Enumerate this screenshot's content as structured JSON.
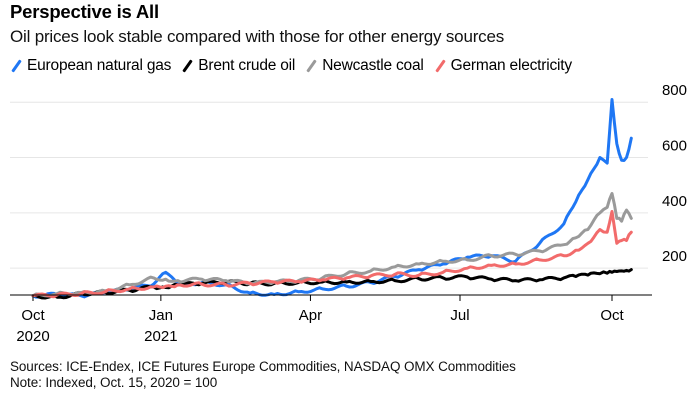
{
  "title": "Perspective is All",
  "subtitle": "Oil prices look stable compared with those for other energy sources",
  "legend": [
    {
      "name": "European natural gas",
      "color": "#1f77f4"
    },
    {
      "name": "Brent crude oil",
      "color": "#000000"
    },
    {
      "name": "Newcastle coal",
      "color": "#9a9a9a"
    },
    {
      "name": "German electricity",
      "color": "#f26b6b"
    }
  ],
  "footer": {
    "sources": "Sources: ICE-Endex, ICE Futures Europe Commodities, NASDAQ OMX Commodities",
    "note": "Note: Indexed, Oct. 15, 2020 = 100"
  },
  "chart_data": {
    "type": "line",
    "title": "Perspective is All",
    "subtitle": "Oil prices look stable compared with those for other energy sources",
    "xlabel": "",
    "ylabel": "",
    "x_unit": "months since Oct. 15, 2020",
    "x_ticks": [
      {
        "t": 0,
        "label": [
          "Oct",
          "2020"
        ]
      },
      {
        "t": 2.65,
        "label": [
          "Jan",
          "2021"
        ]
      },
      {
        "t": 5.75,
        "label": [
          "Apr",
          ""
        ]
      },
      {
        "t": 8.85,
        "label": [
          "Jul",
          ""
        ]
      },
      {
        "t": 12.0,
        "label": [
          "Oct",
          ""
        ]
      }
    ],
    "y_ticks": [
      200,
      400,
      600,
      800
    ],
    "ylim": [
      100,
      820
    ],
    "xlim": [
      0,
      12.9
    ],
    "grid": true,
    "y_axis_side": "right",
    "legend_position": "top",
    "x": [
      0,
      0.5,
      1,
      1.5,
      2,
      2.5,
      2.75,
      3,
      3.5,
      4,
      4.5,
      5,
      5.5,
      6,
      6.5,
      7,
      7.5,
      8,
      8.5,
      9,
      9.5,
      10,
      10.5,
      11,
      11.25,
      11.5,
      11.75,
      11.9,
      12.0,
      12.1,
      12.2,
      12.3,
      12.4
    ],
    "series": [
      {
        "name": "European natural gas",
        "color": "#1f77f4",
        "values": [
          100,
          105,
          100,
          112,
          125,
          142,
          185,
          140,
          148,
          140,
          110,
          105,
          115,
          125,
          135,
          148,
          170,
          195,
          215,
          240,
          245,
          225,
          290,
          360,
          440,
          520,
          600,
          580,
          810,
          650,
          590,
          600,
          670
        ]
      },
      {
        "name": "Brent crude oil",
        "color": "#000000",
        "values": [
          100,
          95,
          108,
          112,
          120,
          132,
          130,
          140,
          145,
          150,
          145,
          145,
          148,
          150,
          150,
          152,
          155,
          162,
          165,
          168,
          160,
          155,
          158,
          165,
          170,
          175,
          180,
          182,
          185,
          188,
          190,
          192,
          195
        ]
      },
      {
        "name": "Newcastle coal",
        "color": "#9a9a9a",
        "values": [
          100,
          108,
          112,
          118,
          140,
          165,
          160,
          155,
          160,
          155,
          145,
          150,
          155,
          165,
          180,
          190,
          205,
          215,
          225,
          230,
          245,
          250,
          262,
          285,
          310,
          340,
          400,
          420,
          470,
          380,
          370,
          410,
          380
        ]
      },
      {
        "name": "German electricity",
        "color": "#f26b6b",
        "values": [
          100,
          103,
          108,
          115,
          125,
          132,
          135,
          140,
          142,
          140,
          145,
          150,
          152,
          158,
          165,
          172,
          178,
          175,
          185,
          200,
          210,
          215,
          230,
          245,
          265,
          290,
          340,
          330,
          405,
          290,
          300,
          300,
          330
        ]
      }
    ]
  }
}
